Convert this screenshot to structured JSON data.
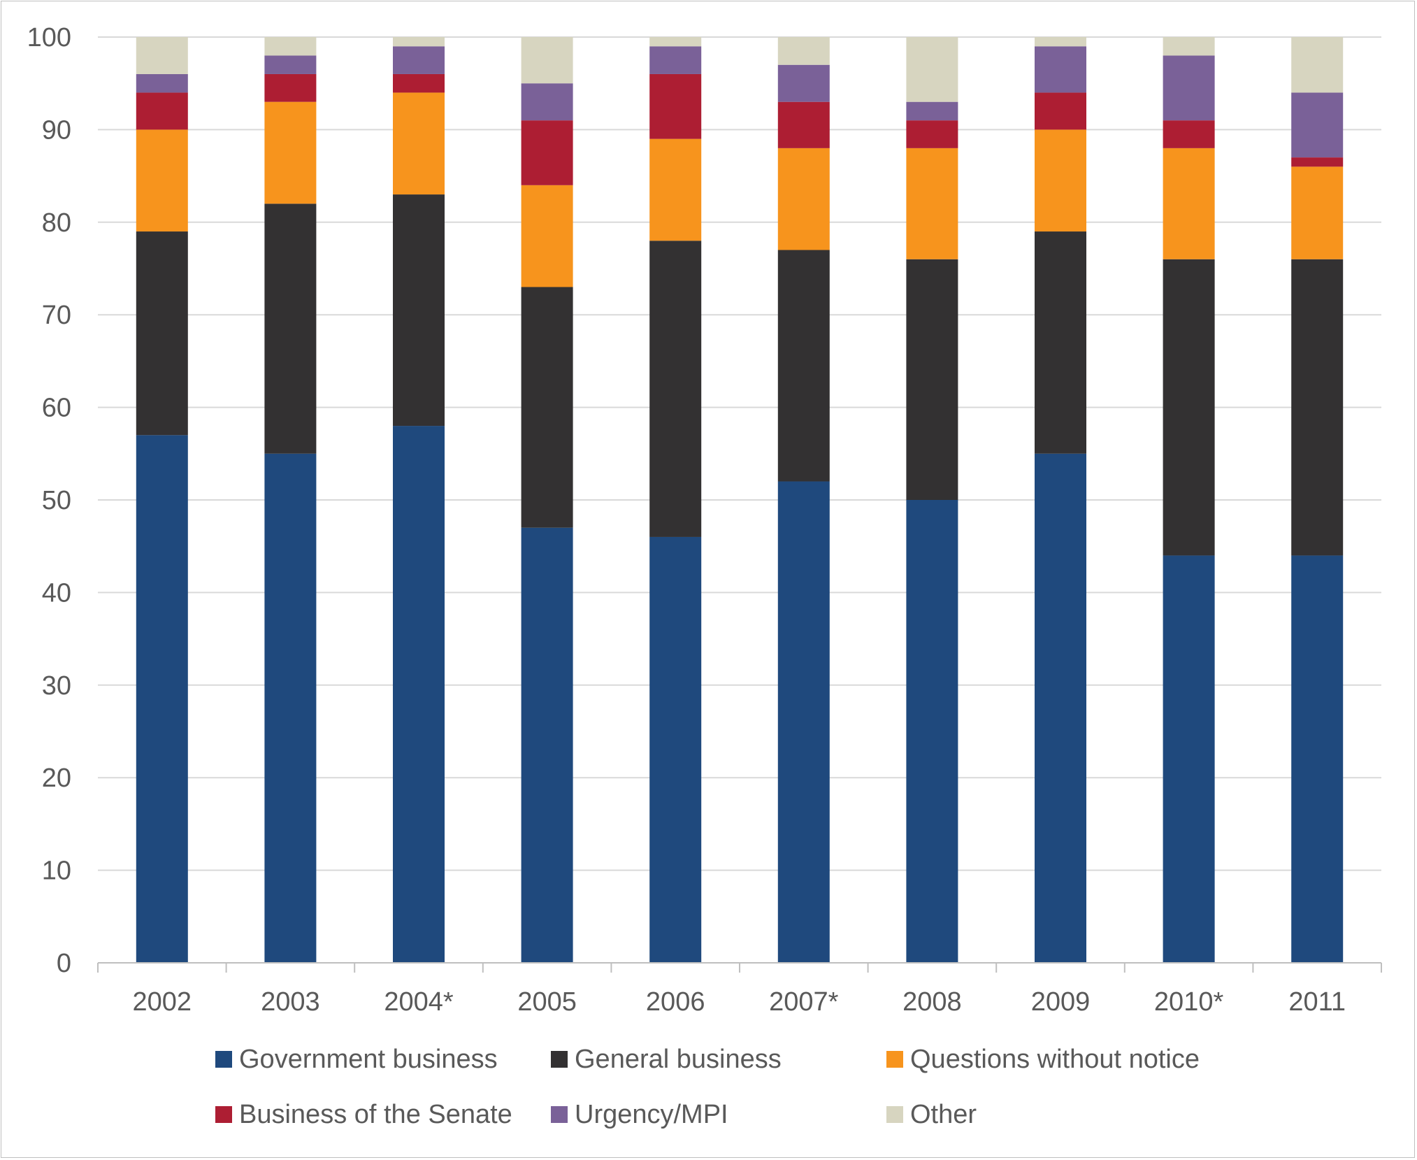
{
  "chart_data": {
    "type": "bar",
    "stacked": true,
    "title": "",
    "xlabel": "",
    "ylabel": "",
    "ylim": [
      0,
      100
    ],
    "yticks": [
      0,
      10,
      20,
      30,
      40,
      50,
      60,
      70,
      80,
      90,
      100
    ],
    "grid": true,
    "legend_position": "bottom",
    "categories": [
      "2002",
      "2003",
      "2004*",
      "2005",
      "2006",
      "2007*",
      "2008",
      "2009",
      "2010*",
      "2011"
    ],
    "series": [
      {
        "name": "Government business",
        "color": "#1f497d",
        "values": [
          57,
          55,
          58,
          47,
          46,
          52,
          50,
          55,
          44,
          44
        ]
      },
      {
        "name": "General business",
        "color": "#333132",
        "values": [
          22,
          27,
          25,
          26,
          32,
          25,
          26,
          24,
          32,
          32
        ]
      },
      {
        "name": "Questions without notice",
        "color": "#f7941d",
        "values": [
          11,
          11,
          11,
          11,
          11,
          11,
          12,
          11,
          12,
          10
        ]
      },
      {
        "name": "Business of the Senate",
        "color": "#ad1e33",
        "values": [
          4,
          3,
          2,
          7,
          7,
          5,
          3,
          4,
          3,
          1
        ]
      },
      {
        "name": "Urgency/MPI",
        "color": "#7a6198",
        "values": [
          2,
          2,
          3,
          4,
          3,
          4,
          2,
          5,
          7,
          7
        ]
      },
      {
        "name": "Other",
        "color": "#d7d5c0",
        "values": [
          4,
          2,
          1,
          5,
          1,
          3,
          7,
          1,
          2,
          6
        ]
      }
    ]
  }
}
